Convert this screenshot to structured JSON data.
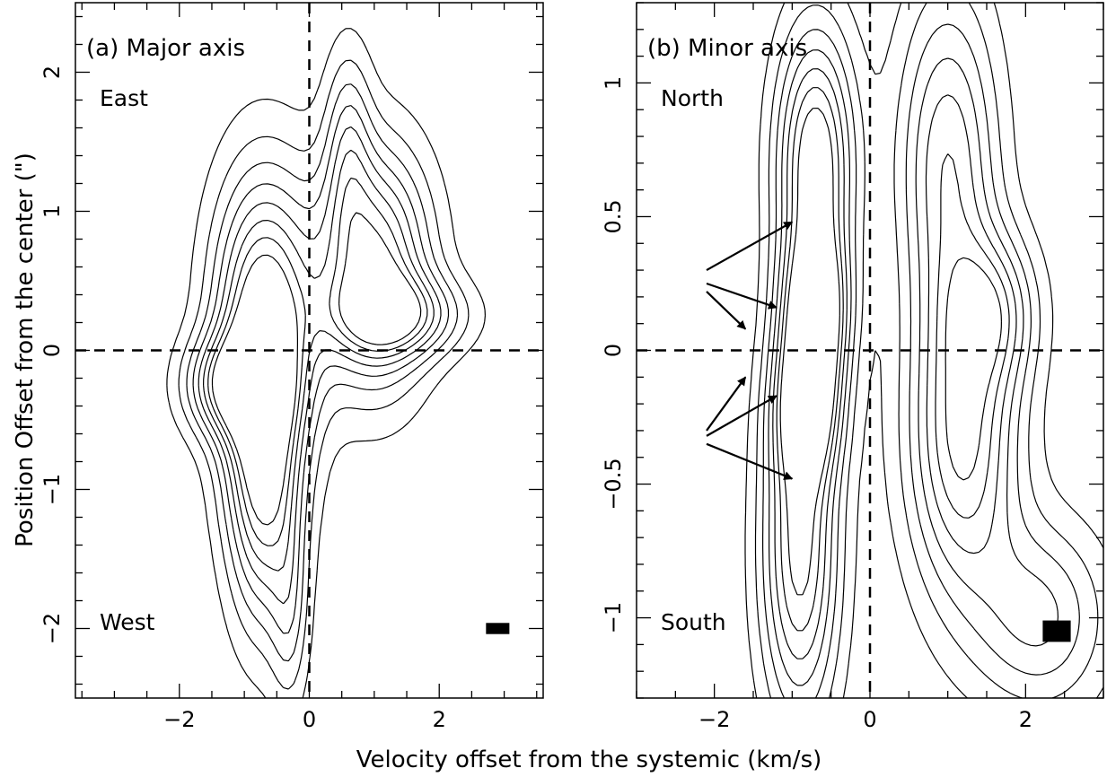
{
  "figure": {
    "xlabel": "Velocity offset from the systemic (km/s)",
    "ylabel": "Position Offset from the center (\")"
  },
  "chart_data": [
    {
      "type": "contour",
      "panel_title": "(a) Major axis",
      "labels": {
        "top": "East",
        "bottom": "West"
      },
      "xlim": [
        -3.6,
        3.6
      ],
      "ylim": [
        -2.5,
        2.5
      ],
      "xticks": [
        -2,
        0,
        2
      ],
      "xticklabels": [
        "−2",
        "0",
        "2"
      ],
      "yticks": [
        -2,
        -1,
        0,
        1,
        2
      ],
      "yticklabels": [
        "−2",
        "−1",
        "0",
        "1",
        "2"
      ],
      "beam": {
        "x": 2.9,
        "y": -2.0,
        "width": 0.36,
        "height": 0.08
      },
      "blobs": [
        {
          "x": -0.7,
          "y": 0.25,
          "sx": 0.55,
          "sy": 0.75,
          "amp": 1.0
        },
        {
          "x": -1.2,
          "y": -0.25,
          "sx": 0.5,
          "sy": 0.25,
          "amp": 0.7
        },
        {
          "x": -0.7,
          "y": -0.9,
          "sx": 0.4,
          "sy": 0.75,
          "amp": 0.9
        },
        {
          "x": 1.0,
          "y": 0.6,
          "sx": 0.6,
          "sy": 0.6,
          "amp": 1.0
        },
        {
          "x": 1.4,
          "y": 0.25,
          "sx": 0.7,
          "sy": 0.2,
          "amp": 0.6
        },
        {
          "x": 0.6,
          "y": 1.5,
          "sx": 0.25,
          "sy": 0.5,
          "amp": 0.4
        },
        {
          "x": -0.3,
          "y": -1.9,
          "sx": 0.2,
          "sy": 0.5,
          "amp": 0.3
        }
      ],
      "levels": [
        0.12,
        0.24,
        0.36,
        0.48,
        0.6,
        0.72,
        0.84,
        0.96
      ]
    },
    {
      "type": "contour",
      "panel_title": "(b) Minor axis",
      "labels": {
        "top": "North",
        "bottom": "South"
      },
      "xlim": [
        -3.0,
        3.0
      ],
      "ylim": [
        -1.3,
        1.3
      ],
      "xticks": [
        -2,
        0,
        2
      ],
      "xticklabels": [
        "−2",
        "0",
        "2"
      ],
      "yticks": [
        -1,
        -0.5,
        0,
        0.5,
        1
      ],
      "yticklabels": [
        "−1",
        "−0.5",
        "0",
        "0.5",
        "1"
      ],
      "beam": {
        "x": 2.4,
        "y": -1.05,
        "width": 0.36,
        "height": 0.08
      },
      "blobs": [
        {
          "x": -0.7,
          "y": 0.7,
          "sx": 0.35,
          "sy": 0.35,
          "amp": 1.0
        },
        {
          "x": -0.7,
          "y": 0.15,
          "sx": 0.3,
          "sy": 0.2,
          "amp": 0.9
        },
        {
          "x": -0.8,
          "y": -0.2,
          "sx": 0.3,
          "sy": 0.2,
          "amp": 0.85
        },
        {
          "x": -0.9,
          "y": -0.75,
          "sx": 0.35,
          "sy": 0.45,
          "amp": 0.9
        },
        {
          "x": 1.2,
          "y": -0.35,
          "sx": 0.5,
          "sy": 0.4,
          "amp": 0.85
        },
        {
          "x": 1.0,
          "y": 0.7,
          "sx": 0.45,
          "sy": 0.45,
          "amp": 0.7
        },
        {
          "x": 1.6,
          "y": 0.15,
          "sx": 0.4,
          "sy": 0.2,
          "amp": 0.5
        },
        {
          "x": 2.2,
          "y": -1.0,
          "sx": 0.6,
          "sy": 0.25,
          "amp": 0.5
        }
      ],
      "levels": [
        0.12,
        0.24,
        0.36,
        0.48,
        0.6,
        0.72,
        0.84
      ],
      "arrows": [
        {
          "from": [
            -2.1,
            0.3
          ],
          "to": [
            -1.0,
            0.48
          ]
        },
        {
          "from": [
            -2.1,
            0.25
          ],
          "to": [
            -1.2,
            0.16
          ]
        },
        {
          "from": [
            -2.1,
            0.22
          ],
          "to": [
            -1.6,
            0.08
          ]
        },
        {
          "from": [
            -2.1,
            -0.3
          ],
          "to": [
            -1.6,
            -0.1
          ]
        },
        {
          "from": [
            -2.1,
            -0.32
          ],
          "to": [
            -1.2,
            -0.17
          ]
        },
        {
          "from": [
            -2.1,
            -0.35
          ],
          "to": [
            -1.0,
            -0.48
          ]
        }
      ]
    }
  ]
}
